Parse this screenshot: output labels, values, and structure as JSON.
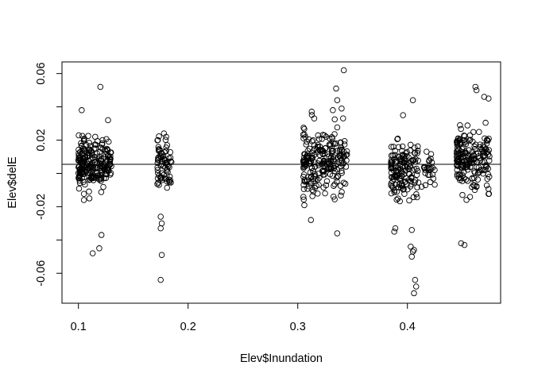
{
  "chart_data": {
    "type": "scatter",
    "title": "",
    "xlabel": "Elev$Inundation",
    "ylabel": "Elev$delE",
    "xlim": [
      0.085,
      0.485
    ],
    "ylim": [
      -0.078,
      0.067
    ],
    "x_ticks": [
      0.1,
      0.2,
      0.3,
      0.4
    ],
    "x_tick_labels": [
      "0.1",
      "0.2",
      "0.3",
      "0.4"
    ],
    "y_ticks": [
      -0.06,
      -0.04,
      -0.02,
      0.0,
      0.02,
      0.04,
      0.06
    ],
    "y_tick_labels": [
      "-0.06",
      "",
      "-0.02",
      "",
      "0.02",
      "",
      "0.06"
    ],
    "grid": false,
    "legend": "none",
    "marker": "open-circle",
    "reference_line": {
      "type": "horizontal",
      "y": 0.0055
    },
    "clusters": [
      {
        "x_range": [
          0.1,
          0.13
        ],
        "y_center": 0.006,
        "y_spread": 0.007,
        "n": 230
      },
      {
        "x_range": [
          0.172,
          0.185
        ],
        "y_center": 0.004,
        "y_spread": 0.008,
        "n": 70
      },
      {
        "x_range": [
          0.305,
          0.345
        ],
        "y_center": 0.006,
        "y_spread": 0.01,
        "n": 230
      },
      {
        "x_range": [
          0.385,
          0.41
        ],
        "y_center": 0.002,
        "y_spread": 0.009,
        "n": 150
      },
      {
        "x_range": [
          0.415,
          0.425
        ],
        "y_center": 0.004,
        "y_spread": 0.006,
        "n": 25
      },
      {
        "x_range": [
          0.445,
          0.475
        ],
        "y_center": 0.008,
        "y_spread": 0.009,
        "n": 190
      }
    ],
    "series": [
      {
        "x": [
          0.12,
          0.121,
          0.119,
          0.113,
          0.105,
          0.11,
          0.127,
          0.103,
          0.176,
          0.175,
          0.175,
          0.176,
          0.175,
          0.178,
          0.18,
          0.342,
          0.336,
          0.335,
          0.336,
          0.332,
          0.34,
          0.315,
          0.312,
          0.404,
          0.403,
          0.405,
          0.406,
          0.404,
          0.407,
          0.408,
          0.406,
          0.388,
          0.389,
          0.396,
          0.405,
          0.462,
          0.463,
          0.47,
          0.474,
          0.449,
          0.452,
          0.413
        ],
        "y": [
          0.052,
          -0.037,
          -0.045,
          -0.048,
          -0.016,
          -0.015,
          0.032,
          0.038,
          -0.049,
          -0.064,
          -0.033,
          -0.03,
          -0.026,
          0.024,
          0.022,
          0.062,
          -0.036,
          0.051,
          0.044,
          0.038,
          0.039,
          0.033,
          -0.028,
          -0.034,
          -0.044,
          -0.047,
          -0.046,
          -0.05,
          -0.064,
          -0.068,
          -0.072,
          -0.035,
          -0.033,
          0.035,
          0.044,
          0.052,
          0.05,
          0.046,
          0.045,
          -0.042,
          -0.043,
          -0.008
        ]
      }
    ]
  }
}
